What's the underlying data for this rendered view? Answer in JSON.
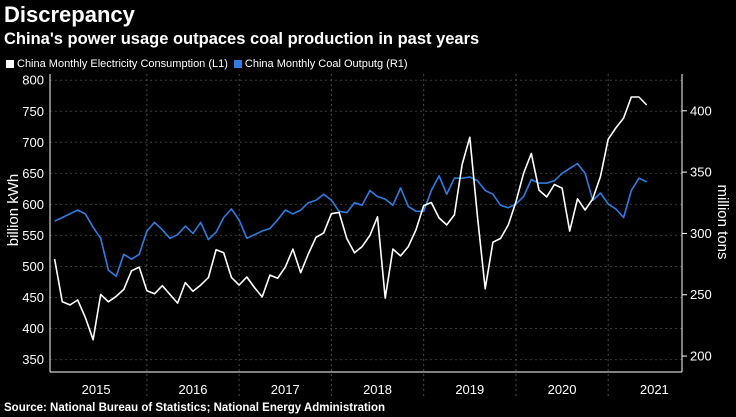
{
  "title": "Discrepancy",
  "subtitle": "China's power usage outpaces coal production in past years",
  "legend": [
    {
      "label": "China Monthly Electricity Consumption (L1)",
      "color": "#ffffff"
    },
    {
      "label": "China Monthly Coal Outputg (R1)",
      "color": "#2f7de1"
    }
  ],
  "source": "Source: National Bureau of Statistics; National Energy Administration",
  "chart_data": {
    "type": "line",
    "ylabel": "billion kWh",
    "y2label": "million tons",
    "ylim": [
      330,
      810
    ],
    "y2lim": [
      187,
      430
    ],
    "yticks": [
      350,
      400,
      450,
      500,
      550,
      600,
      650,
      700,
      750,
      800
    ],
    "y2ticks": [
      200,
      250,
      300,
      350,
      400
    ],
    "year_labels": [
      "2015",
      "2016",
      "2017",
      "2018",
      "2019",
      "2020",
      "2021"
    ],
    "year_label_positions": [
      2015.45,
      2016.5,
      2017.5,
      2018.5,
      2019.5,
      2020.5,
      2021.5
    ],
    "year_boundaries": [
      2016,
      2017,
      2018,
      2019,
      2020,
      2021
    ],
    "series": [
      {
        "name": "China Monthly Electricity Consumption (L1)",
        "axis": "left",
        "color": "#ffffff",
        "x": [
          2015.0,
          2015.083,
          2015.167,
          2015.25,
          2015.333,
          2015.417,
          2015.5,
          2015.583,
          2015.667,
          2015.75,
          2015.833,
          2015.917,
          2016.0,
          2016.083,
          2016.167,
          2016.25,
          2016.333,
          2016.417,
          2016.5,
          2016.583,
          2016.667,
          2016.75,
          2016.833,
          2016.917,
          2017.0,
          2017.083,
          2017.167,
          2017.25,
          2017.333,
          2017.417,
          2017.5,
          2017.583,
          2017.667,
          2017.75,
          2017.833,
          2017.917,
          2018.0,
          2018.083,
          2018.167,
          2018.25,
          2018.333,
          2018.417,
          2018.5,
          2018.583,
          2018.667,
          2018.75,
          2018.833,
          2018.917,
          2019.0,
          2019.083,
          2019.167,
          2019.25,
          2019.333,
          2019.417,
          2019.5,
          2019.583,
          2019.667,
          2019.75,
          2019.833,
          2019.917,
          2020.0,
          2020.083,
          2020.167,
          2020.25,
          2020.333,
          2020.417,
          2020.5,
          2020.583,
          2020.667,
          2020.75,
          2020.833,
          2020.917,
          2021.0,
          2021.083,
          2021.167,
          2021.25,
          2021.333,
          2021.417
        ],
        "values": [
          512,
          443,
          438,
          446,
          418,
          382,
          455,
          443,
          452,
          463,
          493,
          499,
          461,
          456,
          469,
          455,
          441,
          474,
          460,
          470,
          482,
          527,
          522,
          482,
          470,
          483,
          466,
          451,
          486,
          481,
          499,
          528,
          490,
          520,
          547,
          554,
          585,
          587,
          545,
          522,
          532,
          550,
          580,
          449,
          528,
          517,
          532,
          559,
          598,
          603,
          578,
          567,
          583,
          664,
          708,
          580,
          464,
          539,
          545,
          567,
          604,
          650,
          682,
          623,
          612,
          632,
          626,
          557,
          609,
          591,
          609,
          645,
          705,
          723,
          739,
          773,
          773,
          760
        ]
      },
      {
        "name": "China Monthly Coal Outputg (R1)",
        "axis": "right",
        "color": "#2f7de1",
        "x": [
          2015.0,
          2015.083,
          2015.167,
          2015.25,
          2015.333,
          2015.417,
          2015.5,
          2015.583,
          2015.667,
          2015.75,
          2015.833,
          2015.917,
          2016.0,
          2016.083,
          2016.167,
          2016.25,
          2016.333,
          2016.417,
          2016.5,
          2016.583,
          2016.667,
          2016.75,
          2016.833,
          2016.917,
          2017.0,
          2017.083,
          2017.167,
          2017.25,
          2017.333,
          2017.417,
          2017.5,
          2017.583,
          2017.667,
          2017.75,
          2017.833,
          2017.917,
          2018.0,
          2018.083,
          2018.167,
          2018.25,
          2018.333,
          2018.417,
          2018.5,
          2018.583,
          2018.667,
          2018.75,
          2018.833,
          2018.917,
          2019.0,
          2019.083,
          2019.167,
          2019.25,
          2019.333,
          2019.417,
          2019.5,
          2019.583,
          2019.667,
          2019.75,
          2019.833,
          2019.917,
          2020.0,
          2020.083,
          2020.167,
          2020.25,
          2020.333,
          2020.417,
          2020.5,
          2020.583,
          2020.667,
          2020.75,
          2020.833,
          2020.917,
          2021.0,
          2021.083,
          2021.167,
          2021.25,
          2021.333,
          2021.417
        ],
        "values": [
          310,
          313,
          316,
          319,
          316,
          305,
          296,
          270,
          265,
          283,
          279,
          283,
          302,
          309,
          303,
          296,
          299,
          306,
          300,
          309,
          295,
          301,
          313,
          320,
          311,
          296,
          299,
          302,
          304,
          311,
          319,
          316,
          319,
          325,
          327,
          332,
          327,
          318,
          317,
          325,
          323,
          335,
          330,
          328,
          323,
          337,
          322,
          318,
          318,
          335,
          347,
          332,
          345,
          345,
          346,
          343,
          335,
          332,
          323,
          321,
          324,
          330,
          344,
          341,
          341,
          343,
          349,
          353,
          357,
          349,
          327,
          333,
          324,
          320,
          313,
          335,
          345,
          342
        ]
      }
    ]
  }
}
